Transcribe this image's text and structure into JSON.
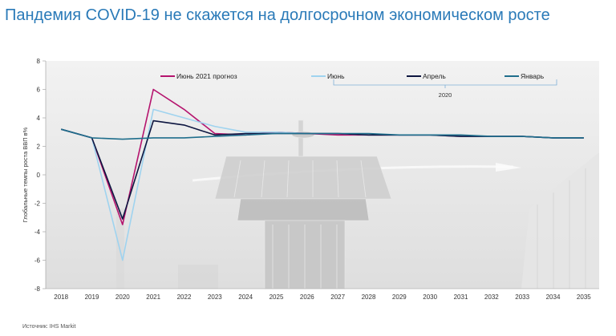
{
  "title": "Пандемия COVID-19 не скажется на долгосрочном экономическом росте",
  "source": "Источник: IHS Markit",
  "chart_data": {
    "type": "line",
    "title": "Пандемия COVID-19 не скажется на долгосрочном экономическом росте",
    "ylabel": "Глобальные темпы роста ВВП в%",
    "xlabel": "",
    "ylim": [
      -8,
      8
    ],
    "yticks": [
      -8,
      -6,
      -4,
      -2,
      0,
      2,
      4,
      6,
      8
    ],
    "x": [
      2018,
      2019,
      2020,
      2021,
      2022,
      2023,
      2024,
      2025,
      2026,
      2027,
      2028,
      2029,
      2030,
      2031,
      2032,
      2033,
      2034,
      2035
    ],
    "legend_group_label": "2020",
    "grid": false,
    "series": [
      {
        "name": "Июнь 2021  прогноз",
        "color": "#b5146e",
        "values": [
          3.2,
          2.6,
          -3.5,
          6.0,
          4.6,
          2.9,
          2.8,
          3.0,
          2.9,
          2.8,
          2.8,
          2.8,
          2.8,
          2.7,
          2.7,
          2.7,
          2.6,
          2.6
        ]
      },
      {
        "name": "Июнь",
        "color": "#9fd3ef",
        "values": [
          3.2,
          2.6,
          -6.0,
          4.6,
          4.0,
          3.4,
          3.0,
          3.0,
          2.9,
          2.9,
          2.8,
          2.8,
          2.8,
          2.7,
          2.7,
          2.7,
          2.6,
          2.6
        ]
      },
      {
        "name": "Апрель",
        "color": "#0d1640",
        "values": [
          3.2,
          2.6,
          -3.1,
          3.8,
          3.5,
          2.8,
          2.9,
          2.9,
          2.9,
          2.9,
          2.8,
          2.8,
          2.8,
          2.7,
          2.7,
          2.7,
          2.6,
          2.6
        ]
      },
      {
        "name": "Январь",
        "color": "#1f6e8c",
        "values": [
          3.2,
          2.6,
          2.5,
          2.6,
          2.6,
          2.7,
          2.8,
          2.9,
          2.9,
          2.9,
          2.9,
          2.8,
          2.8,
          2.8,
          2.7,
          2.7,
          2.6,
          2.6
        ]
      }
    ]
  }
}
